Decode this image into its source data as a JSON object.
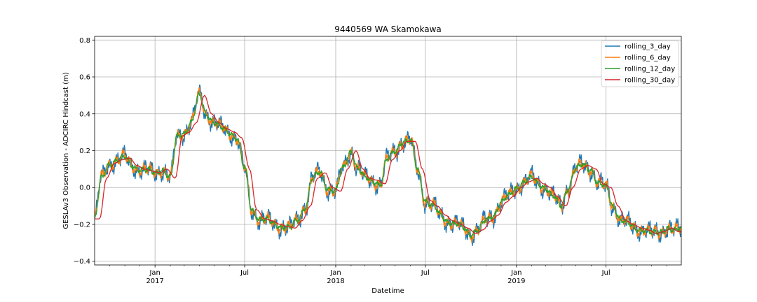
{
  "chart_data": {
    "type": "line",
    "title": "9440569 WA Skamokawa",
    "xlabel": "Datetime",
    "ylabel": "GESLAv3 Observation - ADCIRC Hindcast (m)",
    "xlim": [
      "2016-09-01",
      "2019-11-30"
    ],
    "ylim": [
      -0.42,
      0.82
    ],
    "grid": true,
    "legend_position": "top-right",
    "y_ticks": [
      "−0.4",
      "−0.2",
      "0.0",
      "0.2",
      "0.4",
      "0.6",
      "0.8"
    ],
    "y_tick_values": [
      -0.4,
      -0.2,
      0.0,
      0.2,
      0.4,
      0.6,
      0.8
    ],
    "x_major_ticks": [
      {
        "date": "2017-01-01",
        "label": "Jan",
        "year": "2017"
      },
      {
        "date": "2018-01-01",
        "label": "Jan",
        "year": "2018"
      },
      {
        "date": "2019-01-01",
        "label": "Jan",
        "year": "2019"
      }
    ],
    "x_minor_ticks": [
      {
        "date": "2017-07-01",
        "label": "Jul"
      },
      {
        "date": "2018-07-01",
        "label": "Jul"
      },
      {
        "date": "2019-07-01",
        "label": "Jul"
      }
    ],
    "x_unlabeled_ticks": [
      "2016-10-01",
      "2016-11-01",
      "2016-12-01",
      "2017-02-01",
      "2017-03-01",
      "2017-04-01",
      "2017-05-01",
      "2017-06-01",
      "2017-08-01",
      "2017-09-01",
      "2017-10-01",
      "2017-11-01",
      "2017-12-01",
      "2018-02-01",
      "2018-03-01",
      "2018-04-01",
      "2018-05-01",
      "2018-06-01",
      "2018-08-01",
      "2018-09-01",
      "2018-10-01",
      "2018-11-01",
      "2018-12-01",
      "2019-02-01",
      "2019-03-01",
      "2019-04-01",
      "2019-05-01",
      "2019-06-01",
      "2019-08-01",
      "2019-09-01",
      "2019-10-01",
      "2019-11-01"
    ],
    "series": [
      {
        "name": "rolling_3_day",
        "color": "#1f77b4",
        "width": 1.3,
        "noise": 0.05
      },
      {
        "name": "rolling_6_day",
        "color": "#ff7f0e",
        "width": 1.3,
        "noise": 0.035
      },
      {
        "name": "rolling_12_day",
        "color": "#2ca02c",
        "width": 1.3,
        "noise": 0.018
      },
      {
        "name": "rolling_30_day",
        "color": "#d62728",
        "width": 1.3,
        "noise": 0.0
      }
    ],
    "baseline": {
      "x": [
        "2016-09-01",
        "2016-09-15",
        "2016-10-01",
        "2016-10-15",
        "2016-11-01",
        "2016-11-15",
        "2016-12-01",
        "2016-12-15",
        "2017-01-01",
        "2017-01-15",
        "2017-02-01",
        "2017-02-15",
        "2017-03-01",
        "2017-03-15",
        "2017-04-01",
        "2017-04-15",
        "2017-05-01",
        "2017-05-15",
        "2017-06-01",
        "2017-06-15",
        "2017-07-01",
        "2017-07-15",
        "2017-08-01",
        "2017-08-15",
        "2017-09-01",
        "2017-09-15",
        "2017-10-01",
        "2017-10-15",
        "2017-11-01",
        "2017-11-15",
        "2017-12-01",
        "2017-12-15",
        "2018-01-01",
        "2018-01-15",
        "2018-02-01",
        "2018-02-15",
        "2018-03-01",
        "2018-03-15",
        "2018-04-01",
        "2018-04-15",
        "2018-05-01",
        "2018-05-15",
        "2018-06-01",
        "2018-06-15",
        "2018-07-01",
        "2018-07-15",
        "2018-08-01",
        "2018-08-15",
        "2018-09-01",
        "2018-09-15",
        "2018-10-01",
        "2018-10-15",
        "2018-11-01",
        "2018-11-15",
        "2018-12-01",
        "2018-12-15",
        "2019-01-01",
        "2019-01-15",
        "2019-02-01",
        "2019-02-15",
        "2019-03-01",
        "2019-03-15",
        "2019-04-01",
        "2019-04-15",
        "2019-05-01",
        "2019-05-15",
        "2019-06-01",
        "2019-06-15",
        "2019-07-01",
        "2019-07-15",
        "2019-08-01",
        "2019-08-15",
        "2019-09-01",
        "2019-09-15",
        "2019-10-01",
        "2019-10-15",
        "2019-11-01",
        "2019-11-15",
        "2019-11-30"
      ],
      "y": [
        -0.17,
        0.05,
        0.13,
        0.15,
        0.16,
        0.12,
        0.1,
        0.09,
        0.08,
        0.1,
        0.05,
        0.28,
        0.3,
        0.35,
        0.5,
        0.4,
        0.35,
        0.32,
        0.3,
        0.27,
        0.1,
        -0.12,
        -0.17,
        -0.18,
        -0.2,
        -0.21,
        -0.22,
        -0.18,
        -0.1,
        0.05,
        0.08,
        0.0,
        -0.02,
        0.1,
        0.2,
        0.1,
        0.05,
        0.04,
        0.02,
        0.15,
        0.2,
        0.25,
        0.25,
        0.1,
        -0.07,
        -0.1,
        -0.15,
        -0.18,
        -0.2,
        -0.22,
        -0.25,
        -0.23,
        -0.18,
        -0.15,
        -0.08,
        -0.05,
        0.0,
        0.03,
        0.05,
        0.02,
        0.0,
        -0.05,
        -0.1,
        0.0,
        0.1,
        0.12,
        0.1,
        0.02,
        0.0,
        -0.1,
        -0.18,
        -0.2,
        -0.22,
        -0.23,
        -0.25,
        -0.24,
        -0.22,
        -0.24,
        -0.22
      ]
    }
  }
}
